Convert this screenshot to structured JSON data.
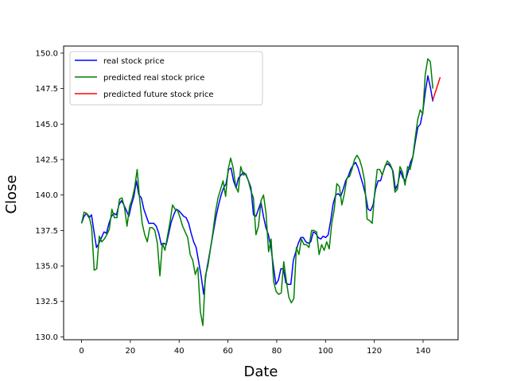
{
  "chart_data": {
    "type": "line",
    "title": "",
    "xlabel": "Date",
    "ylabel": "Close",
    "xlim": [
      -7.35,
      154.35
    ],
    "ylim": [
      129.8,
      150.5
    ],
    "x_ticks": [
      0,
      20,
      40,
      60,
      80,
      100,
      120,
      140
    ],
    "y_ticks": [
      130.0,
      132.5,
      135.0,
      137.5,
      140.0,
      142.5,
      145.0,
      147.5,
      150.0
    ],
    "grid": false,
    "legend": "top-left",
    "series": [
      {
        "name": "real stock price",
        "color": "#0000ff",
        "x_start": 0,
        "values": [
          138.0,
          138.5,
          138.7,
          138.4,
          138.6,
          137.4,
          136.3,
          136.6,
          137.0,
          137.4,
          137.3,
          138.0,
          138.5,
          138.7,
          138.6,
          139.3,
          139.6,
          139.3,
          138.9,
          138.5,
          139.3,
          139.9,
          141.0,
          140.0,
          139.8,
          139.0,
          138.5,
          138.0,
          138.0,
          138.0,
          137.8,
          137.3,
          136.5,
          136.6,
          136.5,
          137.3,
          138.1,
          138.6,
          139.0,
          138.9,
          138.7,
          138.5,
          138.4,
          138.0,
          137.3,
          136.7,
          136.3,
          135.3,
          134.3,
          133.0,
          134.5,
          135.5,
          136.5,
          137.5,
          138.5,
          139.3,
          140.0,
          140.5,
          140.8,
          141.8,
          141.9,
          141.0,
          140.5,
          141.2,
          141.4,
          141.6,
          141.4,
          141.0,
          140.5,
          138.6,
          138.5,
          139.0,
          139.5,
          138.5,
          137.7,
          137.2,
          136.3,
          135.0,
          133.7,
          134.0,
          134.8,
          134.8,
          133.8,
          133.7,
          133.7,
          135.4,
          136.0,
          136.6,
          137.0,
          137.0,
          136.7,
          136.6,
          136.7,
          137.4,
          137.3,
          137.0,
          136.9,
          137.1,
          137.0,
          137.2,
          138.2,
          139.4,
          140.0,
          140.1,
          139.9,
          140.4,
          141.0,
          141.3,
          141.8,
          142.1,
          142.3,
          141.9,
          141.3,
          140.7,
          140.0,
          139.0,
          138.9,
          139.3,
          140.4,
          141.0,
          141.0,
          141.6,
          142.1,
          142.2,
          142.0,
          141.7,
          140.4,
          140.8,
          141.7,
          141.2,
          141.0,
          141.6,
          142.3,
          142.7,
          143.8,
          144.8,
          145.0,
          145.9,
          147.3,
          148.4,
          147.6,
          146.6
        ],
        "x_end": 144
      },
      {
        "name": "predicted real stock price",
        "color": "#008000",
        "x_start": 0,
        "values": [
          138.0,
          138.8,
          138.7,
          138.5,
          137.7,
          134.7,
          134.8,
          137.1,
          136.7,
          136.9,
          137.2,
          137.6,
          139.0,
          138.4,
          138.4,
          139.7,
          139.8,
          139.1,
          137.8,
          139.2,
          139.7,
          140.5,
          141.8,
          139.7,
          138.0,
          137.2,
          136.7,
          137.7,
          137.7,
          137.5,
          136.6,
          134.3,
          136.6,
          136.1,
          137.1,
          138.1,
          139.3,
          139.0,
          138.9,
          138.4,
          137.8,
          137.4,
          137.0,
          135.8,
          135.4,
          134.4,
          134.9,
          131.8,
          130.8,
          134.3,
          135.0,
          136.2,
          137.4,
          138.8,
          139.8,
          140.4,
          141.0,
          139.9,
          141.8,
          142.6,
          141.9,
          140.6,
          140.2,
          142.0,
          141.4,
          141.5,
          141.0,
          140.3,
          139.8,
          137.2,
          137.8,
          139.6,
          140.0,
          138.7,
          136.0,
          136.9,
          133.9,
          133.2,
          133.0,
          133.1,
          135.3,
          134.0,
          132.8,
          132.4,
          132.7,
          136.3,
          135.8,
          136.9,
          136.5,
          136.5,
          136.3,
          137.5,
          137.5,
          137.4,
          135.8,
          136.5,
          136.1,
          136.7,
          136.2,
          138.0,
          139.0,
          140.8,
          140.6,
          139.3,
          140.1,
          141.2,
          141.3,
          141.8,
          142.5,
          142.8,
          142.5,
          141.9,
          141.0,
          138.3,
          138.2,
          138.0,
          140.2,
          141.8,
          141.8,
          141.4,
          142.0,
          142.4,
          142.2,
          141.8,
          140.2,
          140.4,
          142.0,
          141.6,
          140.7,
          142.0,
          141.8,
          142.6,
          144.0,
          145.3,
          146.0,
          145.7,
          148.5,
          149.6,
          149.4,
          147.5
        ],
        "x_end": 144
      },
      {
        "name": "predicted future stock price",
        "color": "#ff0000",
        "x": [
          144,
          147
        ],
        "values": [
          146.7,
          148.3
        ]
      }
    ]
  }
}
